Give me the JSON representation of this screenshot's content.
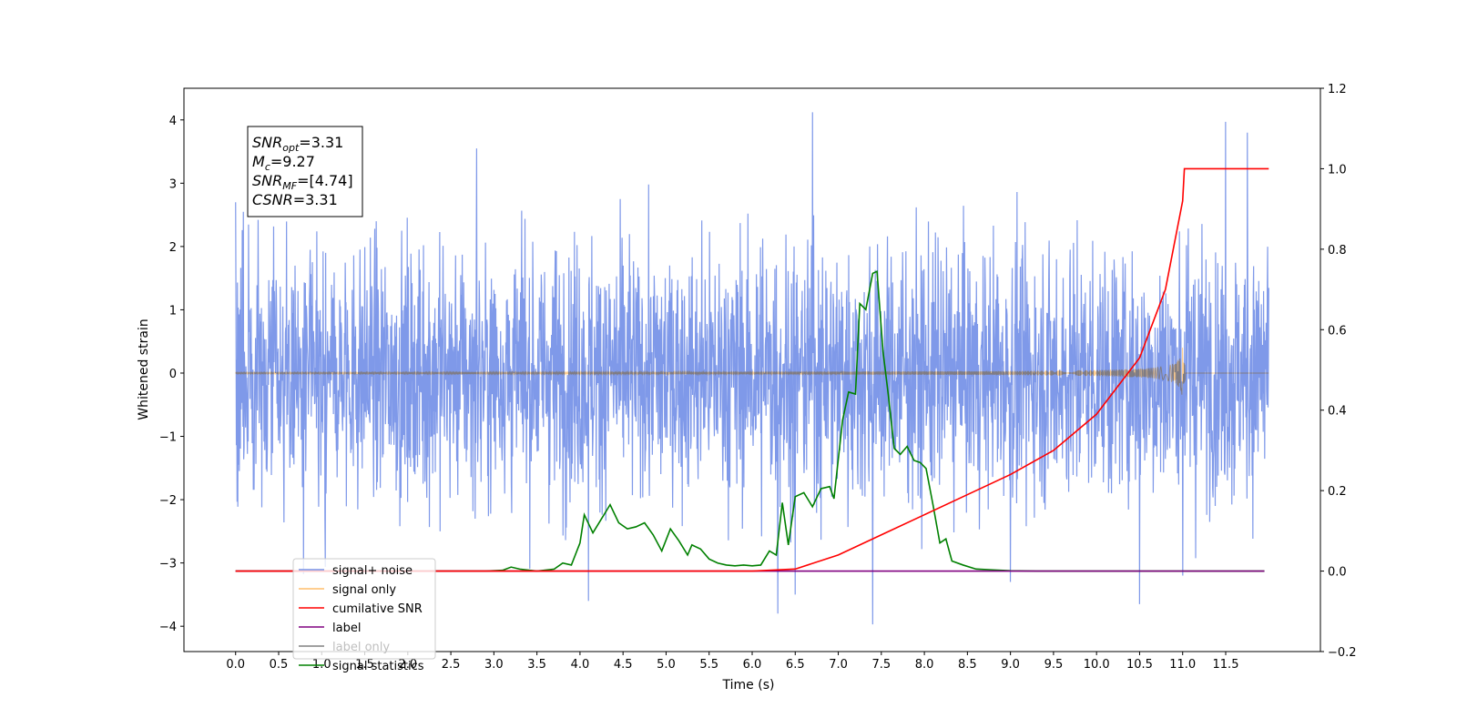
{
  "chart_data": {
    "type": "line",
    "xlabel": "Time (s)",
    "ylabel": "Whitened strain",
    "x_ticks": [
      "0.0",
      "0.5",
      "1.0",
      "1.5",
      "2.0",
      "2.5",
      "3.0",
      "3.5",
      "4.0",
      "4.5",
      "5.0",
      "5.5",
      "6.0",
      "6.5",
      "7.0",
      "7.5",
      "8.0",
      "8.5",
      "9.0",
      "9.5",
      "10.0",
      "10.5",
      "11.0",
      "11.5"
    ],
    "y_left_ticks": [
      "−4",
      "−3",
      "−2",
      "−1",
      "0",
      "1",
      "2",
      "3",
      "4"
    ],
    "y_right_ticks": [
      "−0.2",
      "0.0",
      "0.2",
      "0.4",
      "0.6",
      "0.8",
      "1.0",
      "1.2"
    ],
    "xlim": [
      -0.6,
      12.6
    ],
    "ylim_left": [
      -4.4,
      4.5
    ],
    "ylim_right": [
      -0.2,
      1.2
    ],
    "grid": false,
    "legend_position": "lower-left",
    "legend": [
      {
        "label": "signal+ noise",
        "color": "#7893e8"
      },
      {
        "label": "signal only",
        "color": "#ffbe6b"
      },
      {
        "label": "cumilative SNR",
        "color": "#ff0000"
      },
      {
        "label": "label",
        "color": "#800080"
      },
      {
        "label": "label only",
        "color": "#808080"
      },
      {
        "label": "signal statistics",
        "color": "#008000"
      }
    ],
    "annotation": {
      "lines": [
        {
          "base": "SNR",
          "sub": "opt",
          "value": "=3.31"
        },
        {
          "base": "M",
          "sub": "c",
          "value": "=9.27"
        },
        {
          "base": "SNR",
          "sub": "MF",
          "value": "=[4.74]"
        },
        {
          "base": "CSNR",
          "sub": "",
          "value": "=3.31"
        }
      ]
    },
    "series": [
      {
        "name": "signal+ noise",
        "axis": "left",
        "color": "#7893e8",
        "style": "noise",
        "x_range": [
          0.0,
          12.0
        ],
        "envelope_mean": 0.0,
        "envelope_std": 1.0,
        "extreme_values": [
          {
            "x": 0.0,
            "y": 2.7
          },
          {
            "x": 6.7,
            "y": 4.12
          },
          {
            "x": 11.5,
            "y": 3.97
          },
          {
            "x": 11.75,
            "y": 3.8
          },
          {
            "x": 2.8,
            "y": 3.55
          },
          {
            "x": 4.1,
            "y": -3.6
          },
          {
            "x": 6.3,
            "y": -3.8
          },
          {
            "x": 7.4,
            "y": -3.97
          },
          {
            "x": 10.5,
            "y": -3.65
          },
          {
            "x": 6.5,
            "y": -3.5
          },
          {
            "x": 9.0,
            "y": -3.3
          },
          {
            "x": 11.0,
            "y": -3.2
          }
        ]
      },
      {
        "name": "signal only",
        "axis": "left",
        "color": "#ffbe6b",
        "style": "chirp",
        "x_range": [
          0.0,
          12.0
        ],
        "merger_time": 11.0,
        "peak_amplitude": 0.42
      },
      {
        "name": "cumilative SNR",
        "axis": "right",
        "color": "#ff0000",
        "points": [
          [
            0.0,
            0.0
          ],
          [
            6.0,
            0.0
          ],
          [
            6.5,
            0.005
          ],
          [
            7.0,
            0.04
          ],
          [
            7.5,
            0.09
          ],
          [
            8.0,
            0.14
          ],
          [
            8.5,
            0.19
          ],
          [
            9.0,
            0.24
          ],
          [
            9.5,
            0.3
          ],
          [
            10.0,
            0.39
          ],
          [
            10.5,
            0.53
          ],
          [
            10.8,
            0.7
          ],
          [
            11.0,
            0.92
          ],
          [
            11.02,
            1.0
          ],
          [
            12.0,
            1.0
          ]
        ]
      },
      {
        "name": "label",
        "axis": "right",
        "color": "#800080",
        "points": [
          [
            0.0,
            0.0
          ],
          [
            11.95,
            0.0
          ]
        ]
      },
      {
        "name": "signal statistics",
        "axis": "right",
        "color": "#008000",
        "points": [
          [
            0.0,
            0.0
          ],
          [
            2.9,
            0.0
          ],
          [
            3.1,
            0.002
          ],
          [
            3.2,
            0.01
          ],
          [
            3.3,
            0.005
          ],
          [
            3.5,
            0.0
          ],
          [
            3.7,
            0.005
          ],
          [
            3.8,
            0.02
          ],
          [
            3.9,
            0.015
          ],
          [
            4.0,
            0.07
          ],
          [
            4.05,
            0.14
          ],
          [
            4.15,
            0.095
          ],
          [
            4.25,
            0.13
          ],
          [
            4.35,
            0.165
          ],
          [
            4.45,
            0.12
          ],
          [
            4.55,
            0.105
          ],
          [
            4.65,
            0.11
          ],
          [
            4.75,
            0.12
          ],
          [
            4.85,
            0.09
          ],
          [
            4.95,
            0.05
          ],
          [
            5.05,
            0.105
          ],
          [
            5.15,
            0.075
          ],
          [
            5.25,
            0.04
          ],
          [
            5.3,
            0.065
          ],
          [
            5.4,
            0.055
          ],
          [
            5.5,
            0.03
          ],
          [
            5.6,
            0.02
          ],
          [
            5.7,
            0.015
          ],
          [
            5.8,
            0.013
          ],
          [
            5.9,
            0.015
          ],
          [
            6.0,
            0.013
          ],
          [
            6.1,
            0.015
          ],
          [
            6.2,
            0.05
          ],
          [
            6.28,
            0.04
          ],
          [
            6.35,
            0.17
          ],
          [
            6.42,
            0.065
          ],
          [
            6.5,
            0.185
          ],
          [
            6.6,
            0.195
          ],
          [
            6.7,
            0.16
          ],
          [
            6.8,
            0.205
          ],
          [
            6.9,
            0.21
          ],
          [
            6.95,
            0.18
          ],
          [
            7.05,
            0.375
          ],
          [
            7.12,
            0.445
          ],
          [
            7.2,
            0.44
          ],
          [
            7.25,
            0.665
          ],
          [
            7.32,
            0.65
          ],
          [
            7.4,
            0.74
          ],
          [
            7.45,
            0.745
          ],
          [
            7.52,
            0.545
          ],
          [
            7.58,
            0.44
          ],
          [
            7.65,
            0.305
          ],
          [
            7.72,
            0.29
          ],
          [
            7.8,
            0.31
          ],
          [
            7.88,
            0.275
          ],
          [
            7.95,
            0.27
          ],
          [
            8.02,
            0.255
          ],
          [
            8.1,
            0.165
          ],
          [
            8.18,
            0.07
          ],
          [
            8.25,
            0.08
          ],
          [
            8.32,
            0.025
          ],
          [
            8.45,
            0.015
          ],
          [
            8.6,
            0.005
          ],
          [
            8.8,
            0.003
          ],
          [
            9.0,
            0.001
          ],
          [
            9.3,
            0.0
          ],
          [
            11.95,
            0.0
          ]
        ]
      }
    ]
  }
}
